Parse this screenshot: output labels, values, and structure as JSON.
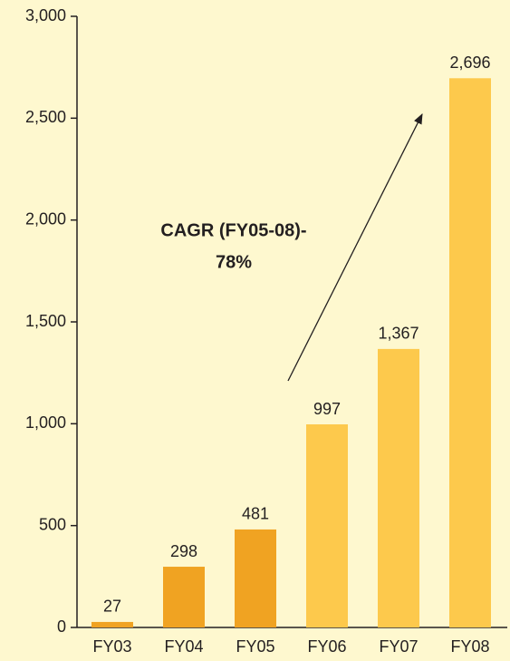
{
  "chart_data": {
    "type": "bar",
    "categories": [
      "FY03",
      "FY04",
      "FY05",
      "FY06",
      "FY07",
      "FY08"
    ],
    "values": [
      27,
      298,
      481,
      997,
      1367,
      2696
    ],
    "value_labels": [
      "27",
      "298",
      "481",
      "997",
      "1,367",
      "2,696"
    ],
    "colors": [
      "#f0a322",
      "#f0a322",
      "#f0a322",
      "#fdc94c",
      "#fdc94c",
      "#fdc94c"
    ],
    "annotations": [
      "CAGR (FY05-08)-",
      "78%"
    ],
    "ylim": [
      0,
      3000
    ],
    "yticks": [
      0,
      500,
      {
        "value": 1000,
        "label": "1,000"
      },
      {
        "value": 1500,
        "label": "1,500"
      },
      {
        "value": 2000,
        "label": "2,000"
      },
      {
        "value": 2500,
        "label": "2,500"
      },
      {
        "value": 3000,
        "label": "3,000"
      }
    ],
    "grid": false
  }
}
